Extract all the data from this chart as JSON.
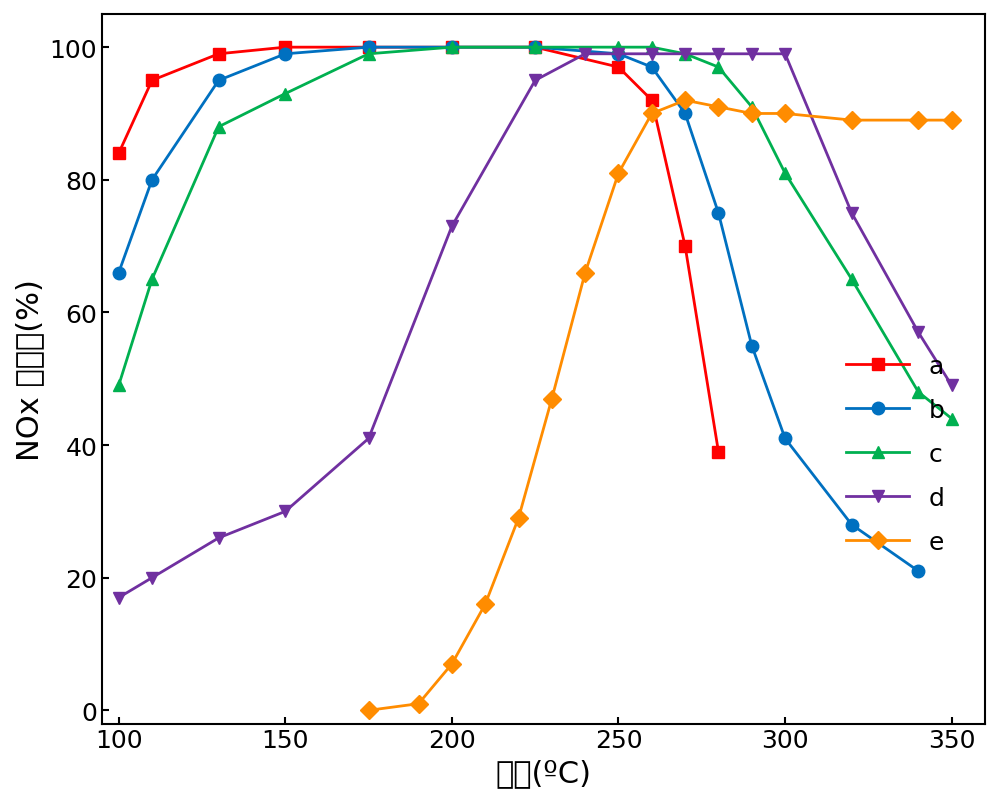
{
  "series": {
    "a": {
      "x": [
        100,
        110,
        130,
        150,
        175,
        200,
        225,
        250,
        260,
        270,
        280,
        290
      ],
      "y": [
        84,
        95,
        99,
        100,
        100,
        100,
        100,
        97,
        92,
        70,
        39,
        null
      ],
      "color": "#ff0000",
      "marker": "s",
      "label": "a"
    },
    "b": {
      "x": [
        100,
        110,
        130,
        150,
        175,
        200,
        225,
        250,
        260,
        270,
        280,
        290,
        300,
        320,
        340,
        350
      ],
      "y": [
        66,
        80,
        95,
        99,
        100,
        100,
        100,
        99,
        97,
        90,
        75,
        55,
        41,
        28,
        21,
        null
      ],
      "color": "#0070c0",
      "marker": "o",
      "label": "b"
    },
    "c": {
      "x": [
        100,
        110,
        130,
        150,
        175,
        200,
        225,
        250,
        260,
        270,
        280,
        290,
        300,
        320,
        340,
        350
      ],
      "y": [
        49,
        65,
        88,
        93,
        99,
        100,
        100,
        100,
        100,
        99,
        97,
        91,
        81,
        65,
        48,
        44
      ],
      "color": "#00b050",
      "marker": "^",
      "label": "c"
    },
    "d": {
      "x": [
        100,
        110,
        130,
        150,
        175,
        200,
        225,
        240,
        250,
        260,
        270,
        280,
        290,
        300,
        320,
        340,
        350
      ],
      "y": [
        17,
        20,
        26,
        30,
        41,
        73,
        95,
        99,
        99,
        99,
        99,
        99,
        99,
        99,
        75,
        57,
        49
      ],
      "color": "#7030a0",
      "marker": "v",
      "label": "d"
    },
    "e": {
      "x": [
        175,
        190,
        200,
        210,
        220,
        230,
        240,
        250,
        260,
        270,
        280,
        290,
        300,
        320,
        340,
        350
      ],
      "y": [
        0,
        1,
        7,
        16,
        29,
        47,
        66,
        81,
        90,
        92,
        91,
        90,
        90,
        89,
        89,
        89
      ],
      "color": "#ff8c00",
      "marker": "D",
      "label": "e"
    }
  },
  "xlabel": "温度(ºC)",
  "ylabel": "NOx 转化率(%)",
  "xlim": [
    95,
    360
  ],
  "ylim": [
    -2,
    105
  ],
  "xticks": [
    100,
    150,
    200,
    250,
    300,
    350
  ],
  "yticks": [
    0,
    20,
    40,
    60,
    80,
    100
  ],
  "xlabel_fontsize": 22,
  "ylabel_fontsize": 22,
  "tick_fontsize": 18,
  "legend_fontsize": 18,
  "linewidth": 2.0,
  "markersize": 9
}
